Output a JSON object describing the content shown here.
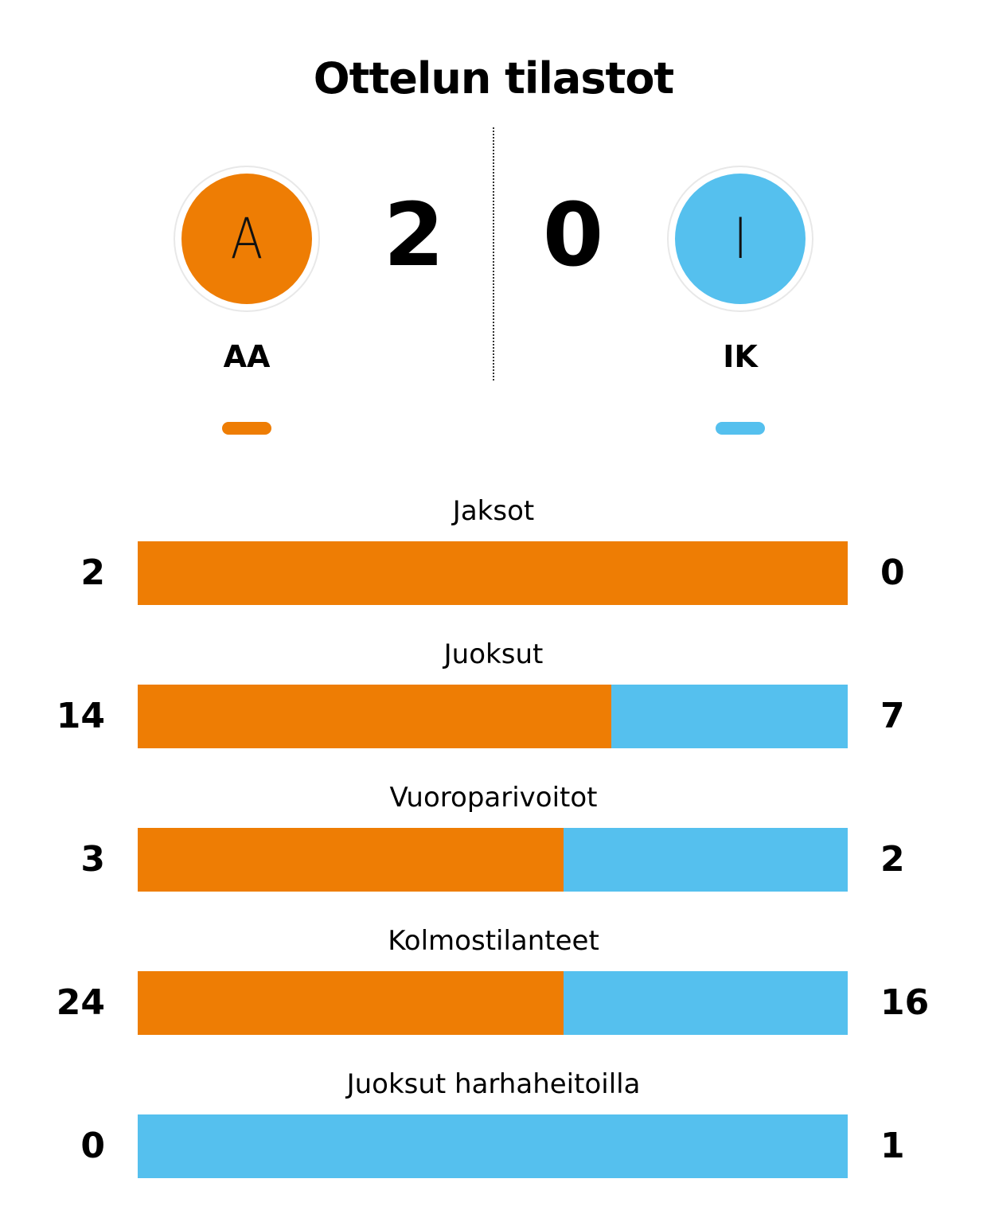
{
  "header": {
    "title": "Ottelun tilastot"
  },
  "colors": {
    "home": "#ee7d04",
    "away": "#55c0ee"
  },
  "teams": {
    "home": {
      "name": "AA",
      "initial": "A",
      "score": "2"
    },
    "away": {
      "name": "IK",
      "initial": "I",
      "score": "0"
    }
  },
  "chart_data": {
    "type": "bar",
    "orientation": "horizontal-stacked-share",
    "title": "Ottelun tilastot",
    "categories": [
      "Jaksot",
      "Juoksut",
      "Vuoroparivoitot",
      "Kolmostilanteet",
      "Juoksut harhaheitoilla"
    ],
    "series": [
      {
        "name": "AA",
        "values": [
          2,
          14,
          3,
          24,
          0
        ]
      },
      {
        "name": "IK",
        "values": [
          0,
          7,
          2,
          16,
          1
        ]
      }
    ],
    "grid": false,
    "legend": "top"
  }
}
